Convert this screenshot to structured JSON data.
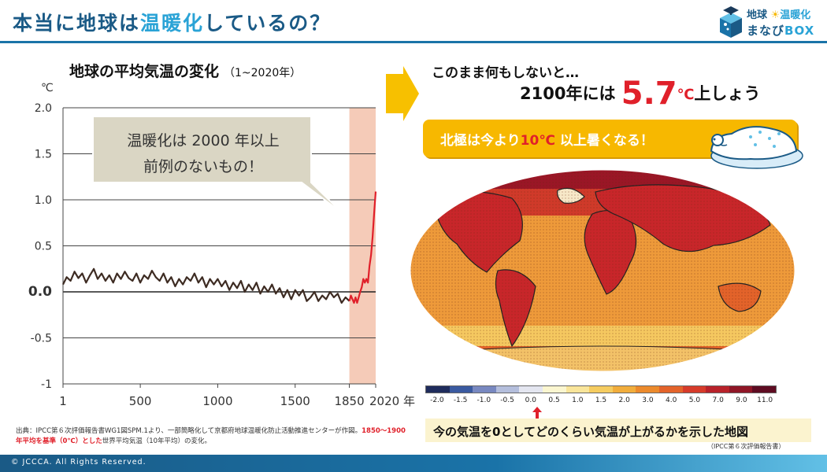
{
  "header": {
    "title_part1": "本当に地球は",
    "title_highlight": "温暖化",
    "title_part2": "しているの？",
    "logo_line1a": "地球",
    "logo_line1b": "温暖化",
    "logo_line2a": "まなび",
    "logo_line2b": "BOX"
  },
  "left_panel": {
    "chart_title": "地球の平均気温の変化",
    "chart_subtitle": "（1~2020年）",
    "unit": "℃",
    "callout_line1": "温暖化は 2000 年以上",
    "callout_line2": "前例のないもの！",
    "source_prefix": "出典：IPCC第６次評価報告書WG1図SPM.1より、一部簡略化して京都府地球温暖化防止活動推進センターが作図。",
    "source_red": "1850〜1900年平均を基準（0℃）とした",
    "source_suffix": "世界平均気温（10年平均）の変化。"
  },
  "right_panel": {
    "line1": "このまま何もしないと…",
    "line2_prefix": "2100年には",
    "line2_value": "5.7",
    "line2_unit": "℃",
    "line2_suffix": "上しょう",
    "banner_prefix": "北極は今より",
    "banner_value": "10℃",
    "banner_suffix": " 以上暑くなる！",
    "map_caption": "今の気温を0としてどのくらい気温が上がるかを示した地図",
    "map_credit": "（IPCC第６次評価報告書）",
    "colors": {
      "banner": "#f7b800",
      "accent_red": "#e0202a"
    }
  },
  "color_scale": {
    "labels": [
      "-2.0",
      "-1.5",
      "-1.0",
      "-0.5",
      "0.0",
      "0.5",
      "1.0",
      "1.5",
      "2.0",
      "3.0",
      "4.0",
      "5.0",
      "7.0",
      "9.0",
      "11.0"
    ],
    "colors": [
      "#1f2c5c",
      "#3a5aa0",
      "#7888c0",
      "#b4bedc",
      "#e4e6f0",
      "#fbf6d0",
      "#f9e59a",
      "#f5cc60",
      "#f1ad3c",
      "#ec8a2c",
      "#e3632a",
      "#d63b2a",
      "#b8222a",
      "#8f1626",
      "#5e0c22"
    ]
  },
  "footer": {
    "copyright": "© JCCCA. All Rights Reserved."
  },
  "chart_data": {
    "type": "line",
    "title": "地球の平均気温の変化",
    "subtitle": "（1~2020年）",
    "ylabel": "℃",
    "xlabel": "年",
    "xlim": [
      1,
      2020
    ],
    "ylim": [
      -1,
      2
    ],
    "x_ticks": [
      1,
      500,
      1000,
      1500,
      1850,
      2020
    ],
    "x_tick_labels": [
      "1",
      "500",
      "1000",
      "1500",
      "1850",
      "2020 年"
    ],
    "y_ticks": [
      -1,
      -0.5,
      0,
      0.5,
      1,
      1.5,
      2
    ],
    "y_tick_labels": [
      "-1",
      "-0.5",
      "0.0",
      "0.5",
      "1.0",
      "1.5",
      "2.0"
    ],
    "highlight_range": [
      1850,
      2020
    ],
    "grid": false,
    "series": [
      {
        "color": "#3d2b22",
        "points": [
          [
            1,
            0.08
          ],
          [
            25,
            0.16
          ],
          [
            50,
            0.12
          ],
          [
            75,
            0.22
          ],
          [
            100,
            0.15
          ],
          [
            125,
            0.2
          ],
          [
            150,
            0.1
          ],
          [
            175,
            0.18
          ],
          [
            200,
            0.25
          ],
          [
            225,
            0.14
          ],
          [
            250,
            0.2
          ],
          [
            275,
            0.12
          ],
          [
            300,
            0.18
          ],
          [
            325,
            0.1
          ],
          [
            350,
            0.2
          ],
          [
            375,
            0.14
          ],
          [
            400,
            0.22
          ],
          [
            425,
            0.15
          ],
          [
            450,
            0.12
          ],
          [
            475,
            0.2
          ],
          [
            500,
            0.1
          ],
          [
            525,
            0.18
          ],
          [
            550,
            0.14
          ],
          [
            575,
            0.23
          ],
          [
            600,
            0.16
          ],
          [
            625,
            0.12
          ],
          [
            650,
            0.2
          ],
          [
            675,
            0.1
          ],
          [
            700,
            0.16
          ],
          [
            725,
            0.06
          ],
          [
            750,
            0.14
          ],
          [
            775,
            0.08
          ],
          [
            800,
            0.16
          ],
          [
            825,
            0.12
          ],
          [
            850,
            0.2
          ],
          [
            875,
            0.1
          ],
          [
            900,
            0.16
          ],
          [
            925,
            0.05
          ],
          [
            950,
            0.14
          ],
          [
            975,
            0.08
          ],
          [
            1000,
            0.14
          ],
          [
            1025,
            0.06
          ],
          [
            1050,
            0.12
          ],
          [
            1075,
            0.02
          ],
          [
            1100,
            0.1
          ],
          [
            1125,
            0.04
          ],
          [
            1150,
            0.12
          ],
          [
            1175,
            0.0
          ],
          [
            1200,
            0.08
          ],
          [
            1225,
            0.02
          ],
          [
            1250,
            0.1
          ],
          [
            1275,
            -0.02
          ],
          [
            1300,
            0.06
          ],
          [
            1325,
            0.0
          ],
          [
            1350,
            0.08
          ],
          [
            1375,
            -0.02
          ],
          [
            1400,
            0.04
          ],
          [
            1425,
            -0.06
          ],
          [
            1450,
            0.02
          ],
          [
            1475,
            -0.08
          ],
          [
            1500,
            0.02
          ],
          [
            1525,
            -0.04
          ],
          [
            1550,
            0.02
          ],
          [
            1575,
            -0.1
          ],
          [
            1600,
            -0.06
          ],
          [
            1625,
            0.0
          ],
          [
            1650,
            -0.1
          ],
          [
            1675,
            -0.04
          ],
          [
            1700,
            -0.08
          ],
          [
            1725,
            0.0
          ],
          [
            1750,
            -0.06
          ],
          [
            1775,
            -0.02
          ],
          [
            1800,
            -0.12
          ],
          [
            1825,
            -0.06
          ],
          [
            1850,
            -0.1
          ]
        ]
      },
      {
        "color": "#e0202a",
        "points": [
          [
            1850,
            -0.1
          ],
          [
            1860,
            -0.04
          ],
          [
            1870,
            -0.08
          ],
          [
            1880,
            -0.12
          ],
          [
            1890,
            -0.06
          ],
          [
            1900,
            -0.12
          ],
          [
            1910,
            -0.06
          ],
          [
            1920,
            0.0
          ],
          [
            1930,
            0.05
          ],
          [
            1940,
            0.14
          ],
          [
            1950,
            0.1
          ],
          [
            1960,
            0.14
          ],
          [
            1970,
            0.1
          ],
          [
            1980,
            0.28
          ],
          [
            1990,
            0.4
          ],
          [
            2000,
            0.6
          ],
          [
            2010,
            0.85
          ],
          [
            2020,
            1.09
          ]
        ]
      }
    ]
  }
}
